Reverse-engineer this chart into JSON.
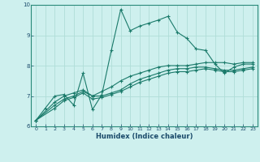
{
  "title": "",
  "xlabel": "Humidex (Indice chaleur)",
  "bg_color": "#cef0ee",
  "line_color": "#1a7a6a",
  "grid_color": "#b0ddd8",
  "xlim": [
    -0.5,
    23.5
  ],
  "ylim": [
    6,
    10
  ],
  "xticks": [
    0,
    1,
    2,
    3,
    4,
    5,
    6,
    7,
    8,
    9,
    10,
    11,
    12,
    13,
    14,
    15,
    16,
    17,
    18,
    19,
    20,
    21,
    22,
    23
  ],
  "yticks": [
    6,
    7,
    8,
    9,
    10
  ],
  "series": [
    {
      "x": [
        0,
        1,
        2,
        3,
        4,
        5,
        6,
        7,
        8,
        9,
        10,
        11,
        12,
        13,
        14,
        15,
        16,
        17,
        18,
        19,
        20,
        21,
        22,
        23
      ],
      "y": [
        6.2,
        6.6,
        7.0,
        7.05,
        6.7,
        7.75,
        6.55,
        7.05,
        8.5,
        9.85,
        9.15,
        9.3,
        9.4,
        9.5,
        9.62,
        9.1,
        8.9,
        8.55,
        8.5,
        8.05,
        7.75,
        7.95,
        8.05,
        8.05
      ]
    },
    {
      "x": [
        0,
        2,
        3,
        4,
        5,
        6,
        7,
        8,
        9,
        10,
        11,
        12,
        13,
        14,
        15,
        16,
        17,
        18,
        19,
        20,
        21,
        22,
        23
      ],
      "y": [
        6.2,
        6.8,
        7.0,
        7.1,
        7.2,
        7.0,
        7.15,
        7.3,
        7.5,
        7.65,
        7.75,
        7.85,
        7.95,
        8.0,
        8.0,
        8.0,
        8.05,
        8.1,
        8.1,
        8.1,
        8.05,
        8.1,
        8.1
      ]
    },
    {
      "x": [
        0,
        2,
        3,
        4,
        5,
        6,
        7,
        8,
        9,
        10,
        11,
        12,
        13,
        14,
        15,
        16,
        17,
        18,
        19,
        20,
        21,
        22,
        23
      ],
      "y": [
        6.2,
        6.7,
        6.9,
        7.0,
        7.15,
        7.0,
        7.0,
        7.1,
        7.2,
        7.4,
        7.55,
        7.65,
        7.75,
        7.85,
        7.9,
        7.9,
        7.95,
        7.95,
        7.9,
        7.85,
        7.85,
        7.9,
        7.95
      ]
    },
    {
      "x": [
        0,
        2,
        3,
        4,
        5,
        6,
        7,
        8,
        9,
        10,
        11,
        12,
        13,
        14,
        15,
        16,
        17,
        18,
        19,
        20,
        21,
        22,
        23
      ],
      "y": [
        6.2,
        6.6,
        6.85,
        6.95,
        7.1,
        6.9,
        6.95,
        7.05,
        7.15,
        7.3,
        7.45,
        7.55,
        7.65,
        7.75,
        7.8,
        7.8,
        7.85,
        7.9,
        7.85,
        7.8,
        7.8,
        7.85,
        7.9
      ]
    }
  ]
}
